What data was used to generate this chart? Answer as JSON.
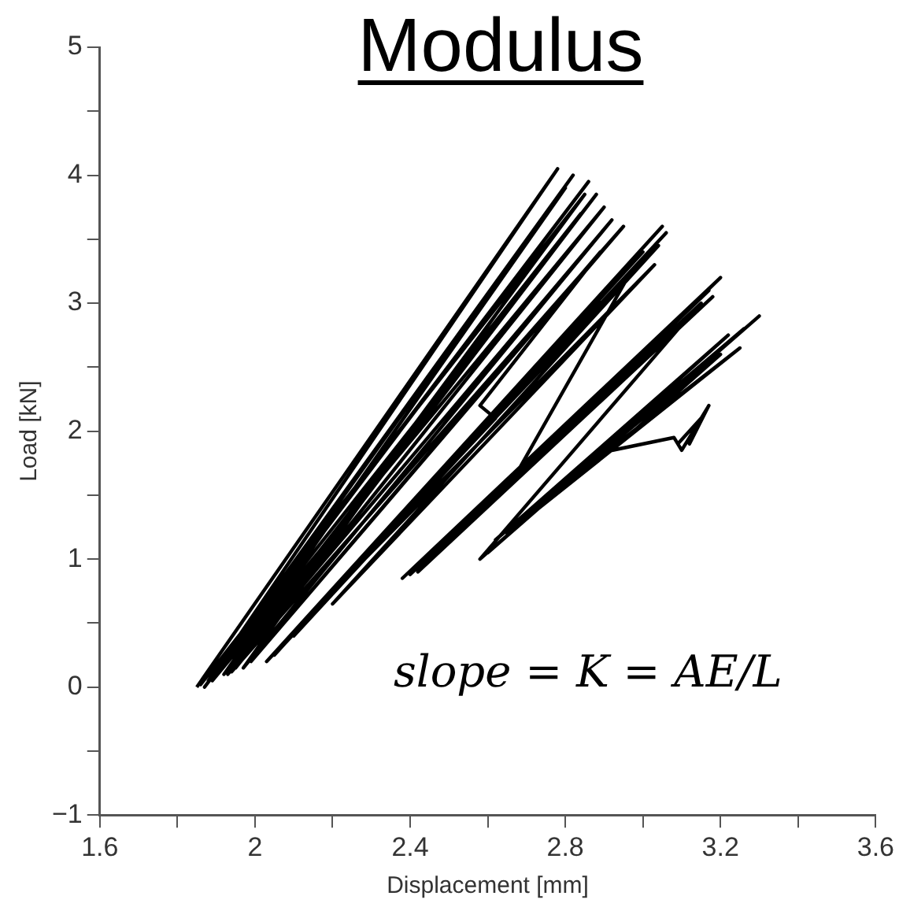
{
  "chart_data": {
    "type": "line",
    "title": "Modulus",
    "xlabel": "Displacement [mm]",
    "ylabel": "Load [kN]",
    "annotations": [
      "slope = K = AE/L"
    ],
    "xlim": [
      1.6,
      3.6
    ],
    "ylim": [
      -1,
      5
    ],
    "xticks": [
      1.6,
      {
        "value": 1.8,
        "label": null
      },
      2,
      {
        "value": 2.2,
        "label": null
      },
      2.4,
      {
        "value": 2.6,
        "label": null
      },
      2.8,
      {
        "value": 3.0,
        "label": null
      },
      3.2,
      {
        "value": 3.4,
        "label": null
      },
      3.6
    ],
    "yticks": [
      -1,
      {
        "value": -0.5,
        "label": null
      },
      0,
      {
        "value": 0.5,
        "label": null
      },
      1,
      {
        "value": 1.5,
        "label": null
      },
      2,
      {
        "value": 2.5,
        "label": null
      },
      3,
      {
        "value": 3.5,
        "label": null
      },
      4,
      {
        "value": 4.5,
        "label": null
      },
      5
    ],
    "grid": false,
    "legend": false,
    "marker": "none",
    "line_style": "solid",
    "series": [
      {
        "color": "#000000",
        "x": [
          1.85,
          2.78,
          1.88,
          2.82,
          1.9,
          2.86,
          1.87,
          2.8,
          1.92,
          2.88,
          1.95,
          2.9,
          1.89,
          2.84,
          1.93,
          2.92,
          1.97,
          2.76,
          1.86,
          2.85,
          1.94,
          2.95,
          1.99,
          2.89,
          2.58,
          2.62,
          2.03,
          3.05,
          2.05,
          3.02,
          2.1,
          3.06,
          2.08,
          3.0,
          2.15,
          3.04,
          2.2,
          3.03,
          2.12,
          2.97,
          2.68,
          2.38,
          3.2,
          2.42,
          3.18,
          2.45,
          3.15,
          2.5,
          3.17,
          2.4,
          3.12,
          2.58,
          3.3,
          2.6,
          3.26,
          2.62,
          3.22,
          2.65,
          3.25,
          2.7,
          3.2,
          2.92,
          3.08,
          3.1,
          3.17,
          3.12,
          3.15,
          3.09
        ],
        "values": [
          0.0,
          4.05,
          0.05,
          4.0,
          0.1,
          3.95,
          0.0,
          3.9,
          0.1,
          3.85,
          0.15,
          3.75,
          0.05,
          3.7,
          0.1,
          3.65,
          0.15,
          3.5,
          0.02,
          3.85,
          0.12,
          3.6,
          0.2,
          3.4,
          2.2,
          2.1,
          0.2,
          3.6,
          0.25,
          3.5,
          0.4,
          3.55,
          0.35,
          3.4,
          0.6,
          3.45,
          0.65,
          3.3,
          0.5,
          3.25,
          1.7,
          0.85,
          3.2,
          0.9,
          3.05,
          1.0,
          3.0,
          1.15,
          3.1,
          0.88,
          2.9,
          1.0,
          2.9,
          1.05,
          2.8,
          1.15,
          2.75,
          1.2,
          2.65,
          1.35,
          2.6,
          1.85,
          1.95,
          1.85,
          2.2,
          1.9,
          2.1,
          1.9
        ]
      }
    ]
  }
}
